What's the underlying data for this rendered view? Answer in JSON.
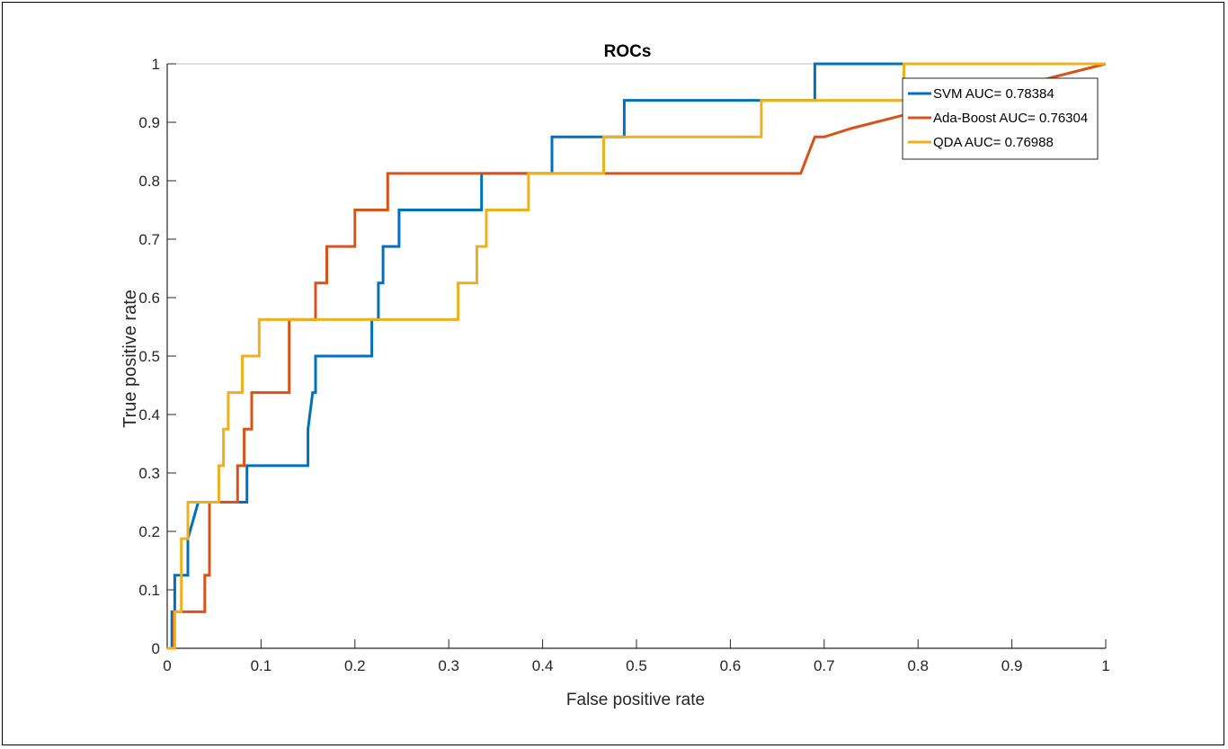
{
  "chart_data": {
    "type": "line",
    "title": "ROCs",
    "xlabel": "False positive rate",
    "ylabel": "True positive rate",
    "xlim": [
      0,
      1
    ],
    "ylim": [
      0,
      1
    ],
    "xticks": [
      "0",
      "0.1",
      "0.2",
      "0.3",
      "0.4",
      "0.5",
      "0.6",
      "0.7",
      "0.8",
      "0.9",
      "1"
    ],
    "yticks": [
      "0",
      "0.1",
      "0.2",
      "0.3",
      "0.4",
      "0.5",
      "0.6",
      "0.7",
      "0.8",
      "0.9",
      "1"
    ],
    "grid": false,
    "legend_position": "top-right",
    "series": [
      {
        "name": "SVM AUC= 0.78384",
        "color": "#0072BD",
        "x": [
          0,
          0.005,
          0.005,
          0.008,
          0.008,
          0.022,
          0.022,
          0.033,
          0.033,
          0.085,
          0.085,
          0.15,
          0.15,
          0.155,
          0.158,
          0.158,
          0.218,
          0.218,
          0.225,
          0.225,
          0.23,
          0.23,
          0.247,
          0.247,
          0.335,
          0.335,
          0.41,
          0.41,
          0.487,
          0.487,
          0.69,
          0.69,
          1.0
        ],
        "y": [
          0,
          0,
          0.0625,
          0.0625,
          0.125,
          0.125,
          0.1875,
          0.25,
          0.25,
          0.25,
          0.3125,
          0.3125,
          0.375,
          0.4375,
          0.4375,
          0.5,
          0.5,
          0.5625,
          0.5625,
          0.625,
          0.625,
          0.6875,
          0.6875,
          0.75,
          0.75,
          0.8125,
          0.8125,
          0.875,
          0.875,
          0.9375,
          0.9375,
          1.0,
          1.0
        ]
      },
      {
        "name": "Ada-Boost AUC= 0.76304",
        "color": "#D95319",
        "x": [
          0,
          0.007,
          0.007,
          0.04,
          0.04,
          0.045,
          0.045,
          0.068,
          0.068,
          0.075,
          0.075,
          0.082,
          0.082,
          0.09,
          0.09,
          0.13,
          0.13,
          0.158,
          0.158,
          0.17,
          0.17,
          0.2,
          0.2,
          0.235,
          0.235,
          0.34,
          0.34,
          0.675,
          0.69,
          0.7,
          0.73,
          1.0
        ],
        "y": [
          0,
          0,
          0.0625,
          0.0625,
          0.125,
          0.125,
          0.25,
          0.25,
          0.25,
          0.25,
          0.3125,
          0.3125,
          0.375,
          0.375,
          0.4375,
          0.4375,
          0.5625,
          0.5625,
          0.625,
          0.625,
          0.6875,
          0.6875,
          0.75,
          0.75,
          0.8125,
          0.8125,
          0.8125,
          0.8125,
          0.875,
          0.875,
          0.89,
          1.0
        ]
      },
      {
        "name": "QDA AUC= 0.76988",
        "color": "#EDB120",
        "x": [
          0,
          0.008,
          0.008,
          0.015,
          0.015,
          0.022,
          0.022,
          0.055,
          0.055,
          0.06,
          0.06,
          0.065,
          0.065,
          0.08,
          0.08,
          0.098,
          0.098,
          0.31,
          0.31,
          0.33,
          0.33,
          0.34,
          0.34,
          0.37,
          0.37,
          0.385,
          0.385,
          0.465,
          0.465,
          0.633,
          0.633,
          0.785,
          0.785,
          1.0
        ],
        "y": [
          0,
          0,
          0.0625,
          0.0625,
          0.1875,
          0.1875,
          0.25,
          0.25,
          0.3125,
          0.3125,
          0.375,
          0.375,
          0.4375,
          0.4375,
          0.5,
          0.5,
          0.5625,
          0.5625,
          0.625,
          0.625,
          0.6875,
          0.6875,
          0.75,
          0.75,
          0.75,
          0.75,
          0.8125,
          0.8125,
          0.875,
          0.875,
          0.9375,
          0.9375,
          1.0,
          1.0
        ]
      }
    ]
  }
}
